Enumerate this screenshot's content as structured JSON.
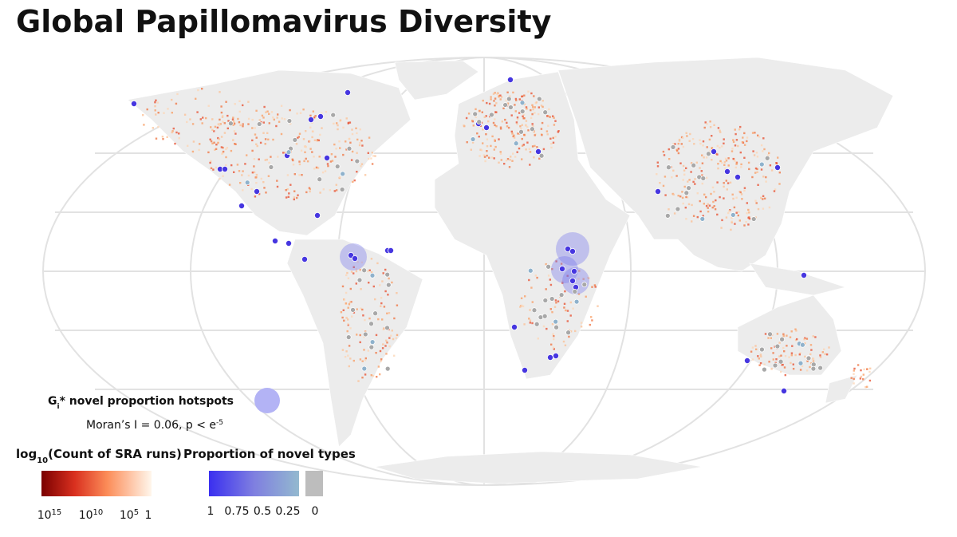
{
  "title": "Global Papillomavirus Diversity",
  "hotspot_legend": {
    "label": "G",
    "label_sub": "i",
    "label_rest": "* novel proportion hotspots",
    "stat": "Moran’s I = 0.06, p < e",
    "stat_sup": "-5"
  },
  "count_legend": {
    "title": "log",
    "title_sub": "10",
    "title_rest": "(Count of SRA runs)",
    "ticks": [
      {
        "base": "10",
        "exp": "15"
      },
      {
        "base": "10",
        "exp": "10"
      },
      {
        "base": "10",
        "exp": "5"
      },
      {
        "base": "1"
      }
    ]
  },
  "novel_legend": {
    "title": "Proportion of novel types",
    "ticks": [
      "1",
      "0.75",
      "0.5",
      "0.25",
      "0"
    ]
  }
}
